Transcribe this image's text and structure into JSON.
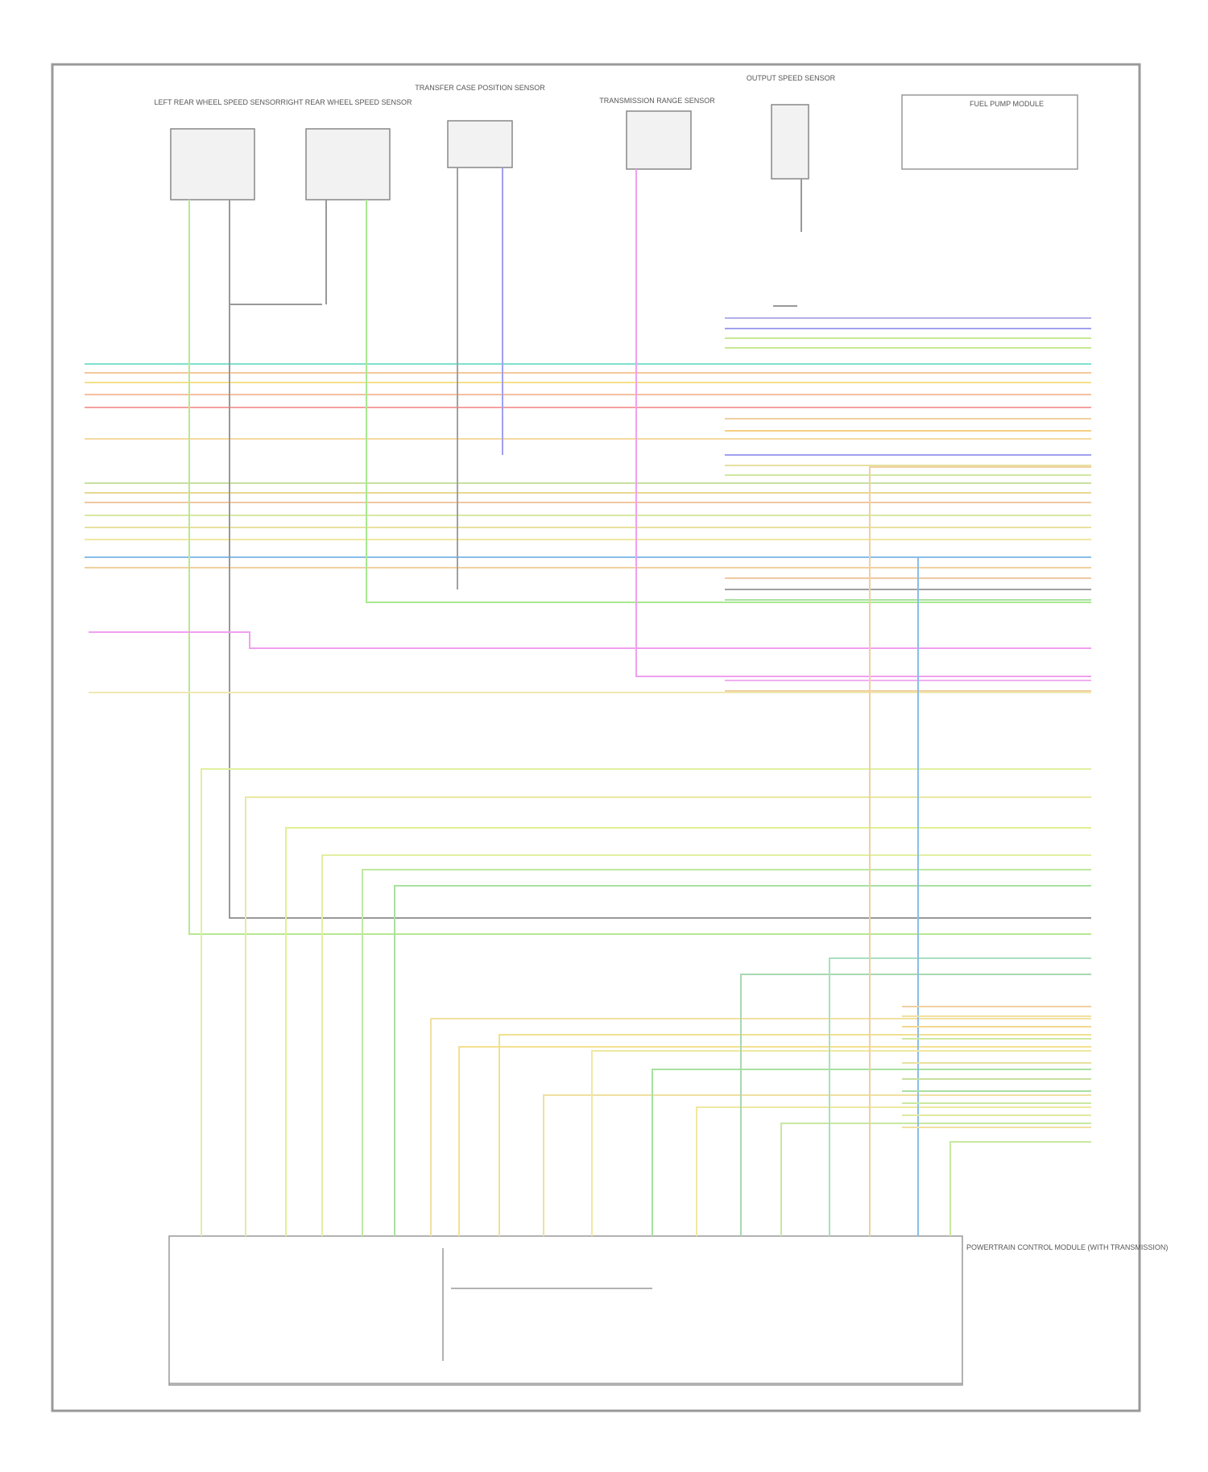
{
  "components": [
    {
      "label": "LEFT REAR WHEEL SPEED SENSOR"
    },
    {
      "label": "RIGHT REAR WHEEL SPEED SENSOR"
    },
    {
      "label": "TRANSFER CASE POSITION SENSOR"
    },
    {
      "label": "TRANSMISSION RANGE SENSOR"
    },
    {
      "label": "OUTPUT SPEED SENSOR"
    },
    {
      "label": "FUEL PUMP MODULE"
    }
  ],
  "module": {
    "label": "POWERTRAIN CONTROL MODULE (WITH TRANSMISSION)"
  }
}
